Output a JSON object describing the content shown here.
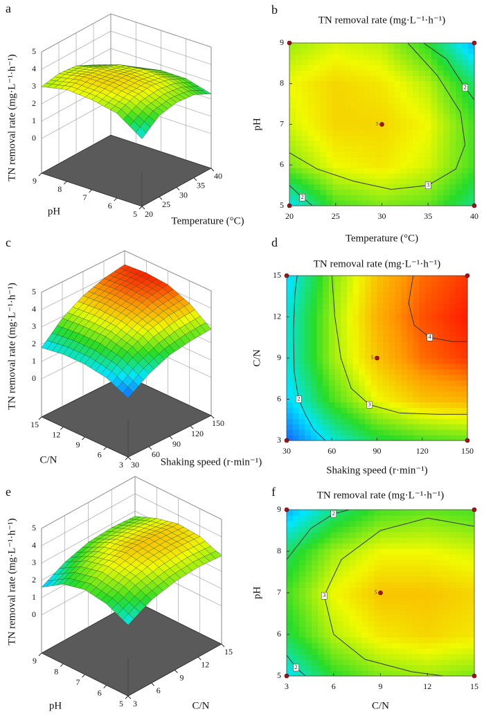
{
  "chart_data": [
    {
      "type": "surface",
      "panel": "a",
      "z_label": "TN removal rate (mg·L⁻¹·h⁻¹)",
      "x_label": "Temperature (°C)",
      "y_label": "pH",
      "xlim": [
        20,
        40
      ],
      "xticks": [
        20,
        25,
        30,
        35,
        40
      ],
      "ylim": [
        5,
        9
      ],
      "yticks": [
        5,
        6,
        7,
        8,
        9
      ],
      "zlim": [
        0,
        5
      ],
      "zticks": [
        0,
        1,
        2,
        3,
        4,
        5
      ],
      "z": [
        [
          1.9,
          2.7,
          2.9,
          2.8,
          2.3
        ],
        [
          2.9,
          3.3,
          3.4,
          3.2,
          2.7
        ],
        [
          3.2,
          3.5,
          3.5,
          3.3,
          2.7
        ],
        [
          3.3,
          3.5,
          3.4,
          3.1,
          2.4
        ],
        [
          3.0,
          3.2,
          3.1,
          2.6,
          1.6
        ]
      ]
    },
    {
      "type": "contour",
      "panel": "b",
      "title": "TN removal rate (mg·L⁻¹·h⁻¹)",
      "x_label": "Temperature (°C)",
      "y_label": "pH",
      "xlim": [
        20,
        40
      ],
      "xticks": [
        20,
        25,
        30,
        35,
        40
      ],
      "ylim": [
        5,
        9
      ],
      "yticks": [
        5,
        6,
        7,
        8,
        9
      ],
      "z": [
        [
          1.9,
          2.7,
          2.9,
          2.8,
          2.3
        ],
        [
          2.9,
          3.3,
          3.4,
          3.2,
          2.7
        ],
        [
          3.2,
          3.5,
          3.5,
          3.3,
          2.7
        ],
        [
          3.3,
          3.5,
          3.4,
          3.1,
          2.4
        ],
        [
          3.0,
          3.2,
          3.1,
          2.6,
          1.6
        ]
      ],
      "contours": [
        {
          "level": 3,
          "x": [
            32.8,
            36,
            38.5,
            39,
            38,
            35,
            31,
            27,
            23,
            20
          ],
          "y": [
            9,
            8.2,
            7.3,
            6.5,
            5.9,
            5.5,
            5.4,
            5.6,
            5.9,
            6.3
          ]
        },
        {
          "level": 2,
          "x": [
            34.5,
            37,
            39,
            40
          ],
          "y": [
            9,
            8.6,
            7.9,
            7.6
          ]
        },
        {
          "level": 2,
          "x": [
            20,
            21.4,
            22.5
          ],
          "y": [
            5.5,
            5.2,
            5
          ]
        }
      ],
      "design_points": {
        "x": [
          20,
          20,
          40,
          40,
          30
        ],
        "y": [
          5,
          9,
          5,
          9,
          7
        ],
        "labels": [
          null,
          null,
          null,
          null,
          "5"
        ]
      }
    },
    {
      "type": "surface",
      "panel": "c",
      "z_label": "TN removal rate (mg·L⁻¹·h⁻¹)",
      "x_label": "Shaking speed (r·min⁻¹)",
      "y_label": "C/N",
      "xlim": [
        30,
        150
      ],
      "xticks": [
        30,
        60,
        90,
        120,
        150
      ],
      "ylim": [
        3,
        15
      ],
      "yticks": [
        3,
        6,
        9,
        12,
        15
      ],
      "zlim": [
        0,
        5
      ],
      "zticks": [
        0,
        1,
        2,
        3,
        4,
        5
      ],
      "z": [
        [
          1.2,
          2.0,
          2.5,
          2.7,
          2.8
        ],
        [
          1.8,
          2.7,
          3.3,
          3.6,
          3.7
        ],
        [
          2.0,
          3.0,
          3.6,
          4.0,
          4.2
        ],
        [
          2.0,
          3.0,
          3.7,
          4.1,
          4.3
        ],
        [
          1.8,
          2.9,
          3.6,
          4.0,
          4.2
        ]
      ]
    },
    {
      "type": "contour",
      "panel": "d",
      "title": "TN removal rate (mg·L⁻¹·h⁻¹)",
      "x_label": "Shaking speed (r·min⁻¹)",
      "y_label": "C/N",
      "xlim": [
        30,
        150
      ],
      "xticks": [
        30,
        60,
        90,
        120,
        150
      ],
      "ylim": [
        3,
        15
      ],
      "yticks": [
        3,
        6,
        9,
        12,
        15
      ],
      "z": [
        [
          1.2,
          2.0,
          2.5,
          2.7,
          2.8
        ],
        [
          1.8,
          2.7,
          3.3,
          3.6,
          3.7
        ],
        [
          2.0,
          3.0,
          3.6,
          4.0,
          4.2
        ],
        [
          2.0,
          3.0,
          3.7,
          4.1,
          4.3
        ],
        [
          1.8,
          2.9,
          3.6,
          4.0,
          4.2
        ]
      ],
      "contours": [
        {
          "level": 4,
          "x": [
            114,
            111,
            114.6,
            125,
            140,
            150
          ],
          "y": [
            15,
            13,
            11.4,
            10.5,
            10.2,
            10.2
          ]
        },
        {
          "level": 3,
          "x": [
            60,
            62,
            66,
            72.8,
            85,
            105,
            130,
            150
          ],
          "y": [
            15,
            12,
            9,
            6.8,
            5.6,
            5,
            4.9,
            4.9
          ]
        },
        {
          "level": 2,
          "x": [
            37,
            35.5,
            34.5,
            35,
            38,
            42.4,
            48,
            55.7
          ],
          "y": [
            15,
            13.7,
            11,
            8,
            6,
            4.9,
            3.8,
            3
          ]
        }
      ],
      "design_points": {
        "x": [
          30,
          30,
          150,
          150,
          90
        ],
        "y": [
          3,
          15,
          3,
          15,
          9
        ],
        "labels": [
          null,
          null,
          null,
          null,
          "5"
        ]
      }
    },
    {
      "type": "surface",
      "panel": "e",
      "z_label": "TN removal rate (mg·L⁻¹·h⁻¹)",
      "x_label": "C/N",
      "y_label": "pH",
      "xlim": [
        3,
        15
      ],
      "xticks": [
        3,
        6,
        9,
        12,
        15
      ],
      "ylim": [
        5,
        9
      ],
      "yticks": [
        5,
        6,
        7,
        8,
        9
      ],
      "zlim": [
        0,
        5
      ],
      "zticks": [
        0,
        1,
        2,
        3,
        4,
        5
      ],
      "z": [
        [
          1.9,
          2.6,
          2.9,
          3.0,
          2.9
        ],
        [
          2.5,
          3.1,
          3.4,
          3.5,
          3.4
        ],
        [
          2.7,
          3.3,
          3.6,
          3.6,
          3.5
        ],
        [
          2.4,
          3.0,
          3.3,
          3.3,
          3.2
        ],
        [
          1.6,
          2.3,
          2.7,
          2.8,
          2.7
        ]
      ]
    },
    {
      "type": "contour",
      "panel": "f",
      "title": "TN removal rate (mg·L⁻¹·h⁻¹)",
      "x_label": "C/N",
      "y_label": "pH",
      "xlim": [
        3,
        15
      ],
      "xticks": [
        3,
        6,
        9,
        12,
        15
      ],
      "ylim": [
        5,
        9
      ],
      "yticks": [
        5,
        6,
        7,
        8,
        9
      ],
      "z": [
        [
          1.9,
          2.6,
          2.9,
          3.0,
          2.9
        ],
        [
          2.5,
          3.1,
          3.4,
          3.5,
          3.4
        ],
        [
          2.7,
          3.3,
          3.6,
          3.6,
          3.5
        ],
        [
          2.4,
          3.0,
          3.3,
          3.3,
          3.2
        ],
        [
          1.6,
          2.3,
          2.7,
          2.8,
          2.7
        ]
      ],
      "contours": [
        {
          "level": 3,
          "x": [
            15,
            12,
            9,
            6.5,
            5.4,
            6,
            8,
            11,
            13
          ],
          "y": [
            8.6,
            8.8,
            8.5,
            7.8,
            6.93,
            6,
            5.4,
            5.1,
            5.0
          ]
        },
        {
          "level": 2,
          "x": [
            3,
            4.55,
            6,
            7
          ],
          "y": [
            7.8,
            8.55,
            8.9,
            9
          ]
        },
        {
          "level": 2,
          "x": [
            3,
            3.6,
            4.2
          ],
          "y": [
            5.5,
            5.2,
            5
          ]
        }
      ],
      "design_points": {
        "x": [
          3,
          3,
          15,
          15,
          9
        ],
        "y": [
          5,
          9,
          5,
          9,
          7
        ],
        "labels": [
          null,
          null,
          null,
          null,
          "5"
        ]
      }
    }
  ]
}
